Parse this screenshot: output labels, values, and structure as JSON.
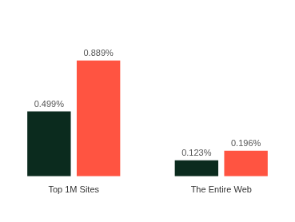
{
  "chart_data": {
    "type": "bar",
    "categories": [
      "Top 1M Sites",
      "The Entire Web"
    ],
    "series": [
      {
        "color": "#0b2b1e",
        "values": [
          0.499,
          0.123
        ],
        "value_labels": [
          "0.499%",
          "0.123%"
        ]
      },
      {
        "color": "#ff5441",
        "values": [
          0.889,
          0.196
        ],
        "value_labels": [
          "0.889%",
          "0.196%"
        ]
      }
    ],
    "data_labels": true,
    "grid": false,
    "tick_labels": "x"
  }
}
